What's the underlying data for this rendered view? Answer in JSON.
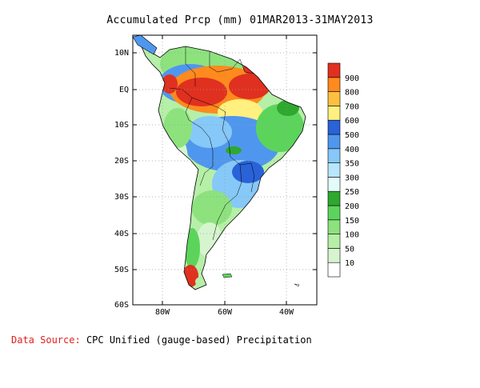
{
  "map": {
    "title": "Accumulated Prcp (mm) 01MAR2013-31MAY2013",
    "lat_labels": [
      "10N",
      "EQ",
      "10S",
      "20S",
      "30S",
      "40S",
      "50S",
      "60S"
    ],
    "lon_labels": [
      "80W",
      "60W",
      "40W"
    ],
    "legend": {
      "levels": [
        "10",
        "50",
        "100",
        "150",
        "200",
        "250",
        "300",
        "350",
        "400",
        "500",
        "600",
        "700",
        "800",
        "900"
      ],
      "colors": [
        "#ffffff",
        "#d6f5cf",
        "#b6efa8",
        "#8de27e",
        "#5cd45c",
        "#2ea82e",
        "#e4fbfb",
        "#b8e6ff",
        "#86c8f8",
        "#4f97ee",
        "#2a62d8",
        "#fff080",
        "#ffc040",
        "#ff8a1e",
        "#e03020"
      ]
    },
    "colors": {
      "ocean": "#ffffff",
      "coast": "#000000",
      "grid": "#9a9a9a"
    }
  },
  "footer": {
    "source_label": "Data Source:",
    "source_value": "CPC Unified (gauge-based) Precipitation"
  }
}
